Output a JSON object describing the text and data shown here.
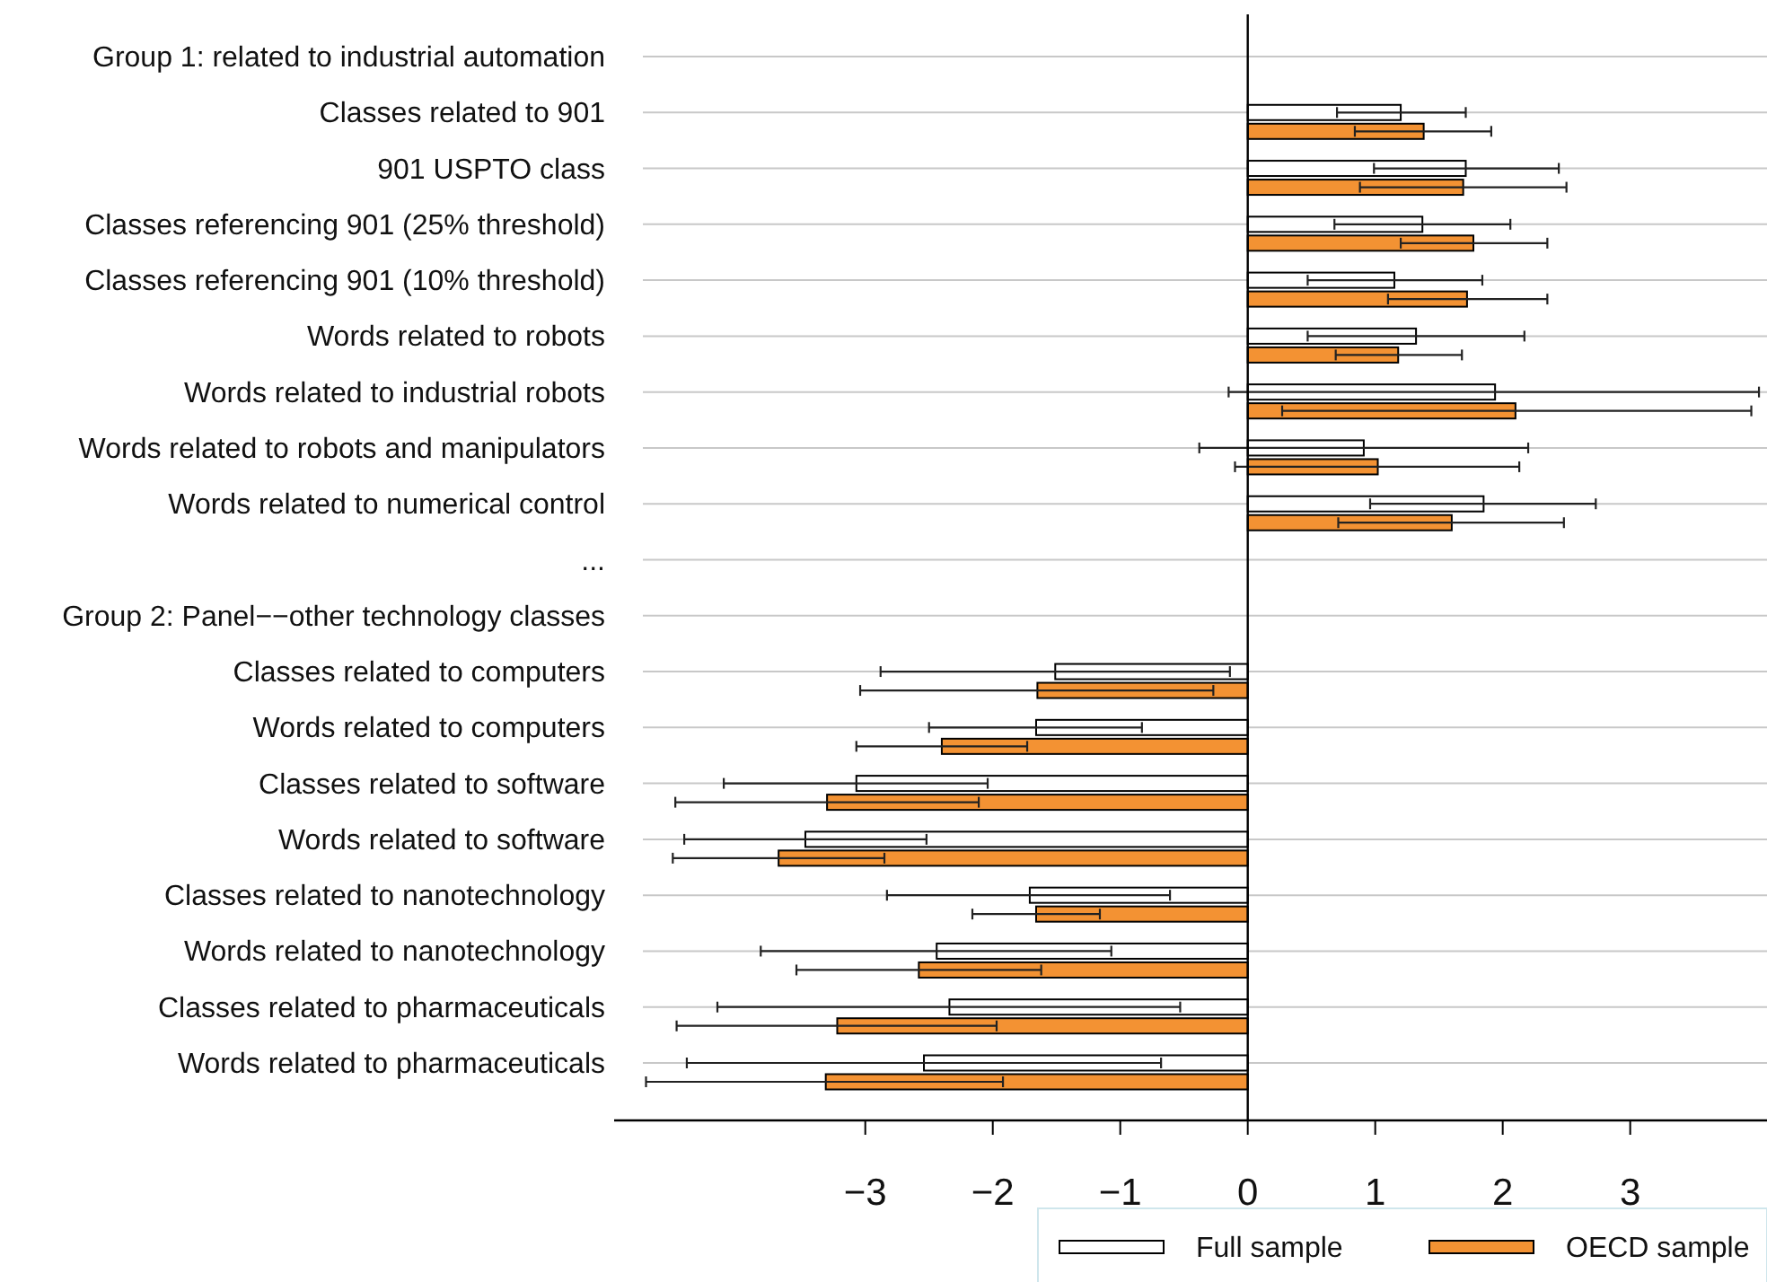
{
  "chart_data": {
    "type": "bar",
    "orientation": "horizontal",
    "categories": [
      "Group 1: related to industrial automation",
      "Classes related to 901",
      "901 USPTO class",
      "Classes referencing 901 (25% threshold)",
      "Classes referencing 901 (10% threshold)",
      "Words related to robots",
      "Words related to industrial robots",
      "Words related to robots and manipulators",
      "Words related to numerical control",
      "...",
      "Group 2: Panel−−other technology classes",
      "Classes related to computers",
      "Words related to computers",
      "Classes related to software",
      "Words related to software",
      "Classes related to nanotechnology",
      "Words related to nanotechnology",
      "Classes related to pharmaceuticals",
      "Words related to pharmaceuticals"
    ],
    "series": [
      {
        "name": "Full sample",
        "color": "#ffffff",
        "values": [
          null,
          1.2,
          1.71,
          1.37,
          1.15,
          1.32,
          1.94,
          0.91,
          1.85,
          null,
          null,
          -1.51,
          -1.66,
          -3.07,
          -3.47,
          -1.71,
          -2.44,
          -2.34,
          -2.54
        ],
        "errors": [
          null,
          [
            0.7,
            1.71
          ],
          [
            0.99,
            2.44
          ],
          [
            0.68,
            2.06
          ],
          [
            0.47,
            1.84
          ],
          [
            0.47,
            2.17
          ],
          [
            -0.15,
            4.01
          ],
          [
            -0.38,
            2.2
          ],
          [
            0.96,
            2.73
          ],
          null,
          null,
          [
            -2.88,
            -0.14
          ],
          [
            -2.5,
            -0.83
          ],
          [
            -4.11,
            -2.04
          ],
          [
            -4.42,
            -2.52
          ],
          [
            -2.83,
            -0.61
          ],
          [
            -3.82,
            -1.07
          ],
          [
            -4.16,
            -0.53
          ],
          [
            -4.4,
            -0.68
          ]
        ]
      },
      {
        "name": "OECD sample",
        "color": "#f39233",
        "values": [
          null,
          1.38,
          1.69,
          1.77,
          1.72,
          1.18,
          2.1,
          1.02,
          1.6,
          null,
          null,
          -1.65,
          -2.4,
          -3.3,
          -3.68,
          -1.66,
          -2.58,
          -3.22,
          -3.31
        ],
        "errors": [
          null,
          [
            0.84,
            1.91
          ],
          [
            0.88,
            2.5
          ],
          [
            1.2,
            2.35
          ],
          [
            1.1,
            2.35
          ],
          [
            0.69,
            1.68
          ],
          [
            0.27,
            3.95
          ],
          [
            -0.1,
            2.13
          ],
          [
            0.71,
            2.48
          ],
          null,
          null,
          [
            -3.04,
            -0.27
          ],
          [
            -3.07,
            -1.73
          ],
          [
            -4.49,
            -2.11
          ],
          [
            -4.51,
            -2.85
          ],
          [
            -2.16,
            -1.16
          ],
          [
            -3.54,
            -1.62
          ],
          [
            -4.48,
            -1.97
          ],
          [
            -4.72,
            -1.92
          ]
        ]
      }
    ],
    "xlim": [
      -4.97,
      4.08
    ],
    "xticks": [
      {
        "value": -3,
        "label": "−3"
      },
      {
        "value": -2,
        "label": "−2"
      },
      {
        "value": -1,
        "label": "−1"
      },
      0,
      1,
      2,
      3
    ],
    "grid": "y",
    "legend": "bottom right"
  }
}
